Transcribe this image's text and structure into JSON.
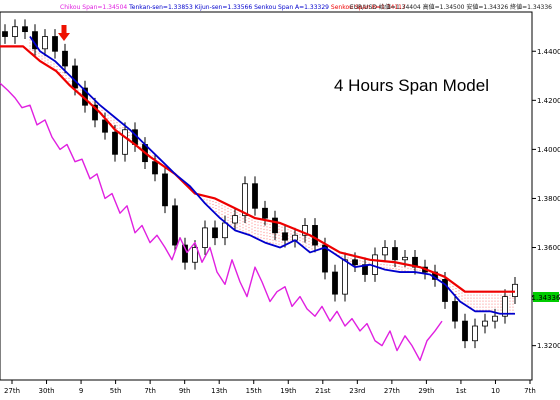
{
  "window": {
    "symbol_info": "EUR/USD 始値=1.34404 高値=1.34500 安値=1.34326 終値=1.34336",
    "legend": [
      {
        "text": "Chikou Span=1.34504",
        "color": "#e020e0"
      },
      {
        "text": "Tenkan-sen=1.33853",
        "color": "#0000cc"
      },
      {
        "text": "Kijun-sen=1.33566",
        "color": "#0000cc"
      },
      {
        "text": "Senkou Span A=1.33329",
        "color": "#0000cc"
      },
      {
        "text": "Senkou Span B=1.34117",
        "color": "#ee0000"
      }
    ],
    "last_price_badge": "1.34336"
  },
  "chart_data": {
    "type": "line",
    "title": "4 Hours Span Model",
    "signal_marker": "down-arrow",
    "y_axis": {
      "ticks": [
        1.32,
        1.34,
        1.36,
        1.38,
        1.4,
        1.42,
        1.44
      ],
      "ylim": [
        1.306,
        1.456
      ],
      "labels": [
        "1.32000",
        "1.34000",
        "1.36000",
        "1.38000",
        "1.40000",
        "1.42000",
        "1.44000"
      ]
    },
    "x_axis": {
      "categories": [
        "27th",
        "30th",
        "9",
        "5th",
        "7th",
        "9th",
        "13th",
        "15th",
        "19th",
        "21st",
        "23rd",
        "27th",
        "29th",
        "1st",
        "10",
        "7th"
      ]
    },
    "series": [
      {
        "name": "Senkou Span B",
        "color": "#ee0000",
        "x": [
          0,
          16,
          23,
          40,
          56,
          70,
          84,
          100,
          115,
          135,
          150,
          175,
          195,
          215,
          235,
          255,
          280,
          310,
          340,
          370,
          395,
          420,
          445,
          465,
          492,
          515
        ],
        "y": [
          1.442,
          1.442,
          1.442,
          1.436,
          1.432,
          1.426,
          1.421,
          1.415,
          1.408,
          1.402,
          1.397,
          1.39,
          1.382,
          1.38,
          1.376,
          1.372,
          1.37,
          1.365,
          1.358,
          1.355,
          1.354,
          1.352,
          1.348,
          1.342,
          1.342,
          1.342
        ]
      },
      {
        "name": "Senkou Span A",
        "color": "#0000cc",
        "x": [
          30,
          40,
          55,
          70,
          85,
          100,
          115,
          130,
          145,
          160,
          175,
          190,
          205,
          220,
          235,
          250,
          265,
          280,
          295,
          310,
          325,
          340,
          355,
          370,
          385,
          400,
          415,
          430,
          445,
          460,
          475,
          490,
          500,
          515
        ],
        "y": [
          1.446,
          1.44,
          1.436,
          1.43,
          1.424,
          1.418,
          1.413,
          1.408,
          1.402,
          1.396,
          1.39,
          1.385,
          1.378,
          1.372,
          1.367,
          1.365,
          1.362,
          1.36,
          1.363,
          1.358,
          1.36,
          1.356,
          1.352,
          1.353,
          1.351,
          1.35,
          1.35,
          1.349,
          1.345,
          1.338,
          1.334,
          1.334,
          1.333,
          1.333
        ]
      },
      {
        "name": "Chikou Span",
        "color": "#e020e0",
        "x": [
          0,
          8,
          15,
          22,
          30,
          37,
          45,
          52,
          60,
          67,
          75,
          82,
          90,
          97,
          105,
          112,
          120,
          127,
          135,
          142,
          150,
          157,
          165,
          172,
          180,
          187,
          195,
          202,
          210,
          217,
          225,
          232,
          240,
          247,
          255,
          262,
          270,
          277,
          285,
          292,
          300,
          307,
          315,
          322,
          330,
          337,
          345,
          352,
          360,
          367,
          375,
          382,
          390,
          397,
          405,
          412,
          420,
          427,
          435,
          442
        ],
        "y": [
          1.427,
          1.424,
          1.421,
          1.417,
          1.418,
          1.41,
          1.412,
          1.405,
          1.4,
          1.402,
          1.395,
          1.396,
          1.388,
          1.39,
          1.38,
          1.382,
          1.374,
          1.377,
          1.366,
          1.369,
          1.362,
          1.365,
          1.36,
          1.355,
          1.364,
          1.358,
          1.362,
          1.354,
          1.36,
          1.35,
          1.345,
          1.355,
          1.346,
          1.34,
          1.352,
          1.346,
          1.338,
          1.342,
          1.344,
          1.336,
          1.34,
          1.335,
          1.332,
          1.336,
          1.33,
          1.334,
          1.328,
          1.331,
          1.326,
          1.329,
          1.322,
          1.32,
          1.326,
          1.318,
          1.324,
          1.32,
          1.314,
          1.322,
          1.326,
          1.33
        ]
      },
      {
        "name": "Candles",
        "color": "#000000",
        "x": [
          5,
          15,
          25,
          35,
          45,
          55,
          65,
          75,
          85,
          95,
          105,
          115,
          125,
          135,
          145,
          155,
          165,
          175,
          185,
          195,
          205,
          215,
          225,
          235,
          245,
          255,
          265,
          275,
          285,
          295,
          305,
          315,
          325,
          335,
          345,
          355,
          365,
          375,
          385,
          395,
          405,
          415,
          425,
          435,
          445,
          455,
          465,
          475,
          485,
          495,
          505,
          515
        ],
        "y": [
          1.446,
          1.45,
          1.448,
          1.441,
          1.446,
          1.44,
          1.434,
          1.425,
          1.418,
          1.412,
          1.407,
          1.398,
          1.408,
          1.402,
          1.395,
          1.39,
          1.377,
          1.361,
          1.354,
          1.36,
          1.368,
          1.364,
          1.37,
          1.373,
          1.386,
          1.376,
          1.372,
          1.366,
          1.363,
          1.365,
          1.369,
          1.361,
          1.35,
          1.341,
          1.355,
          1.353,
          1.349,
          1.357,
          1.36,
          1.355,
          1.356,
          1.352,
          1.35,
          1.347,
          1.338,
          1.33,
          1.322,
          1.328,
          1.33,
          1.332,
          1.34,
          1.345
        ]
      }
    ]
  }
}
